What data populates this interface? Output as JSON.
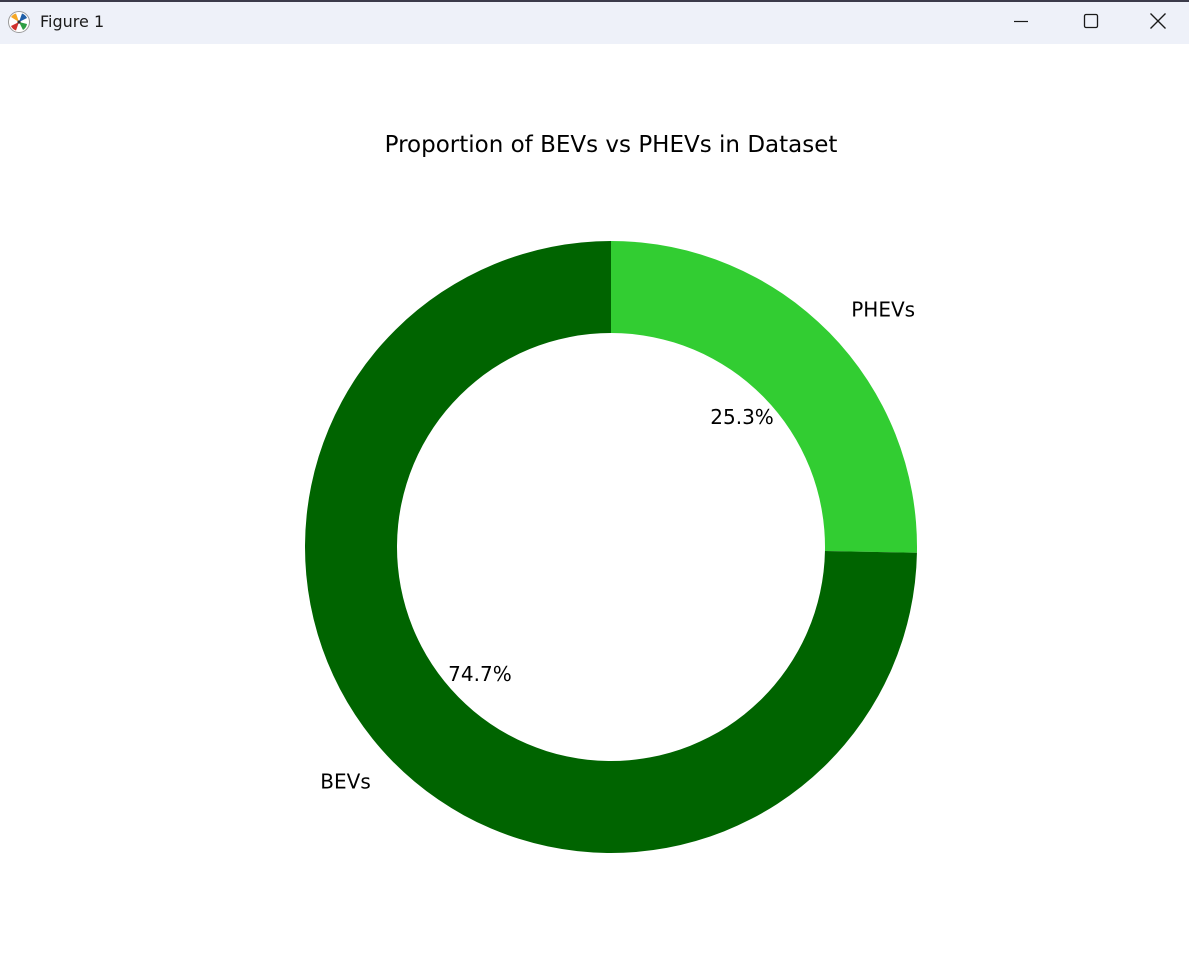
{
  "window": {
    "title": "Figure 1",
    "app_icon": "matplotlib-logo-icon",
    "controls": [
      "minimize-icon",
      "maximize-icon",
      "close-icon"
    ]
  },
  "chart_data": {
    "type": "pie",
    "variant": "donut",
    "title": "Proportion of BEVs vs PHEVs in Dataset",
    "slices": [
      {
        "label": "PHEVs",
        "value": 25.3,
        "pct_label": "25.3%",
        "color": "#32cd32"
      },
      {
        "label": "BEVs",
        "value": 74.7,
        "pct_label": "74.7%",
        "color": "#006400"
      }
    ]
  }
}
